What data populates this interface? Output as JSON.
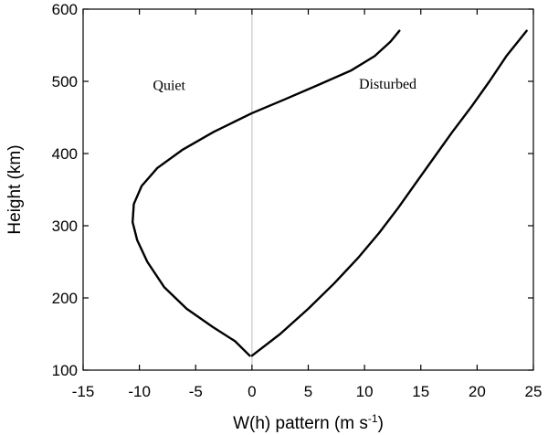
{
  "chart_data": {
    "type": "line",
    "title": "",
    "xlabel": "W(h) pattern (m s",
    "xlabel_sup": "-1",
    "xlabel_end": ")",
    "ylabel": "Height (km)",
    "xlim": [
      -15,
      25
    ],
    "ylim": [
      100,
      600
    ],
    "xticks": [
      -15,
      -10,
      -5,
      0,
      5,
      10,
      15,
      20,
      25
    ],
    "yticks": [
      100,
      200,
      300,
      400,
      500,
      600
    ],
    "zero_line": true,
    "grid": false,
    "series": [
      {
        "name": "Quiet",
        "x": [
          -0.2,
          -1.5,
          -3.5,
          -5.8,
          -7.8,
          -9.3,
          -10.2,
          -10.6,
          -10.5,
          -9.8,
          -8.4,
          -6.2,
          -3.4,
          0,
          2.9,
          5.9,
          8.8,
          10.9,
          12.3,
          13.1
        ],
        "y": [
          120,
          140,
          160,
          185,
          215,
          250,
          280,
          305,
          330,
          355,
          380,
          405,
          430,
          456,
          475,
          495,
          515,
          535,
          555,
          570
        ]
      },
      {
        "name": "Disturbed",
        "x": [
          0,
          2.5,
          5.0,
          7.3,
          9.4,
          11.3,
          13.0,
          14.6,
          16.2,
          17.8,
          19.5,
          21.1,
          22.6,
          24.4
        ],
        "y": [
          120,
          150,
          185,
          220,
          255,
          290,
          325,
          360,
          395,
          430,
          465,
          500,
          535,
          570
        ]
      }
    ]
  }
}
